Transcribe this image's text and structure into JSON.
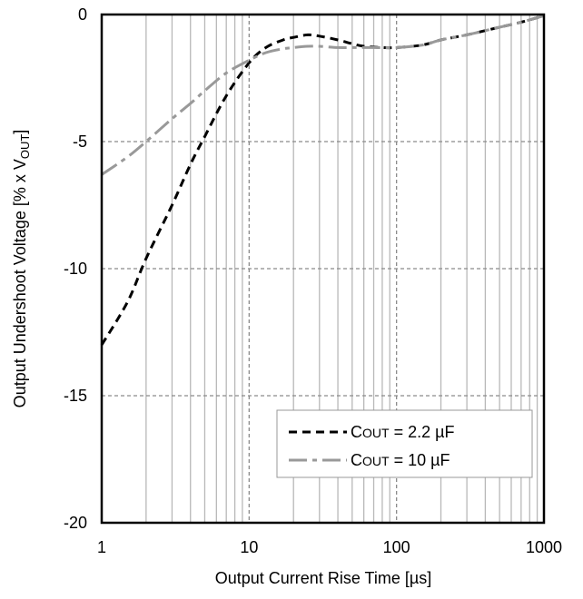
{
  "chart_data": {
    "type": "line",
    "xscale": "log",
    "xlim": [
      1,
      1000
    ],
    "ylim": [
      -20,
      0
    ],
    "xticks": [
      "1",
      "10",
      "100",
      "1000"
    ],
    "yticks": [
      "0",
      "-5",
      "-10",
      "-15",
      "-20"
    ],
    "xlabel": "Output Current Rise Time [µs]",
    "ylabel": "Output Undershoot Voltage [% x VOUT]",
    "ylabel_parts": {
      "pre": "Output Undershoot Voltage [% x V",
      "sub": "OUT",
      "post": "]"
    },
    "grid": {
      "x_minor": true,
      "major": "dashed"
    },
    "legend_position": "lower-right",
    "series": [
      {
        "name": "COUT = 2.2 µF",
        "legend_parts": {
          "pre": "C",
          "sub": "OUT",
          "post": "  =  2.2  µF"
        },
        "color": "#000000",
        "dash": "dashed",
        "x": [
          1,
          1.5,
          2,
          3,
          4,
          5,
          7,
          10,
          13,
          17,
          20,
          25,
          30,
          40,
          50,
          60,
          80,
          100,
          150,
          200,
          300,
          500,
          700,
          1000
        ],
        "y": [
          -13.0,
          -11.3,
          -9.6,
          -7.5,
          -5.9,
          -4.8,
          -3.2,
          -1.9,
          -1.3,
          -1.0,
          -0.9,
          -0.8,
          -0.85,
          -1.0,
          -1.15,
          -1.25,
          -1.3,
          -1.3,
          -1.2,
          -1.0,
          -0.8,
          -0.5,
          -0.3,
          -0.05
        ]
      },
      {
        "name": "COUT = 10 µF",
        "legend_parts": {
          "pre": "C",
          "sub": "OUT",
          "post": " = 10 µF"
        },
        "color": "#999999",
        "dash": "dash-dot",
        "x": [
          1,
          1.5,
          2,
          3,
          4,
          5,
          7,
          10,
          13,
          17,
          20,
          25,
          30,
          40,
          50,
          70,
          100,
          150,
          200,
          300,
          500,
          700,
          1000
        ],
        "y": [
          -6.3,
          -5.6,
          -5.0,
          -4.1,
          -3.5,
          -3.0,
          -2.3,
          -1.8,
          -1.5,
          -1.35,
          -1.3,
          -1.25,
          -1.25,
          -1.3,
          -1.3,
          -1.3,
          -1.3,
          -1.2,
          -1.0,
          -0.8,
          -0.5,
          -0.3,
          -0.05
        ]
      }
    ]
  }
}
